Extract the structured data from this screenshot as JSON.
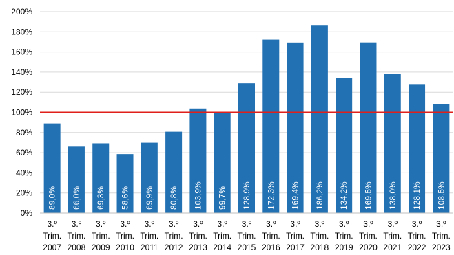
{
  "chart_data": {
    "type": "bar",
    "categories": [
      [
        "3.º",
        "Trim.",
        "2007"
      ],
      [
        "3.º",
        "Trim.",
        "2008"
      ],
      [
        "3.º",
        "Trim.",
        "2009"
      ],
      [
        "3.º",
        "Trim.",
        "2010"
      ],
      [
        "3.º",
        "Trim.",
        "2011"
      ],
      [
        "3.º",
        "Trim.",
        "2012"
      ],
      [
        "3.º",
        "Trim.",
        "2013"
      ],
      [
        "3.º",
        "Trim.",
        "2014"
      ],
      [
        "3.º",
        "Trim.",
        "2015"
      ],
      [
        "3.º",
        "Trim.",
        "2016"
      ],
      [
        "3.º",
        "Trim.",
        "2017"
      ],
      [
        "3.º",
        "Trim.",
        "2018"
      ],
      [
        "3.º",
        "Trim.",
        "2019"
      ],
      [
        "3.º",
        "Trim.",
        "2020"
      ],
      [
        "3.º",
        "Trim.",
        "2021"
      ],
      [
        "3.º",
        "Trim.",
        "2022"
      ],
      [
        "3.º",
        "Trim.",
        "2023"
      ]
    ],
    "values": [
      89.0,
      66.0,
      69.3,
      58.6,
      69.9,
      80.8,
      103.9,
      99.7,
      128.9,
      172.3,
      169.4,
      186.2,
      134.2,
      169.5,
      138.0,
      128.1,
      108.5
    ],
    "data_labels": [
      "89,0%",
      "66,0%",
      "69,3%",
      "58,6%",
      "69,9%",
      "80,8%",
      "103,9%",
      "99,7%",
      "128,9%",
      "172,3%",
      "169,4%",
      "186,2%",
      "134,2%",
      "169,5%",
      "138,0%",
      "128,1%",
      "108,5%"
    ],
    "y_ticks": [
      "0%",
      "20%",
      "40%",
      "60%",
      "80%",
      "100%",
      "120%",
      "140%",
      "160%",
      "180%",
      "200%"
    ],
    "ylim": [
      0,
      200
    ],
    "reference_line": 100,
    "grid": true,
    "colors": {
      "bar": "#2271b3",
      "reference_line": "#e0201b",
      "grid": "#d9d9d9",
      "axis": "#bfbfbf"
    },
    "title": "",
    "xlabel": "",
    "ylabel": ""
  }
}
